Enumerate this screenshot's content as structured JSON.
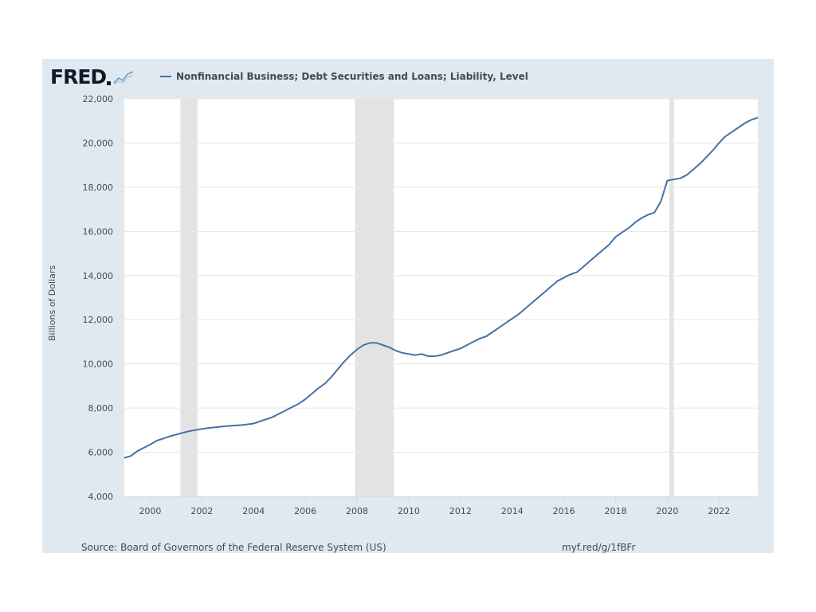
{
  "logo": {
    "text": "FRED",
    "icon": "fred-graph-icon"
  },
  "chart_data": {
    "type": "line",
    "title": "Nonfinancial Business; Debt Securities and Loans; Liability, Level",
    "ylabel": "Billions of Dollars",
    "xlabel": "",
    "ylim": [
      4000,
      22000
    ],
    "xlim": [
      1999.0,
      2023.5
    ],
    "y_ticks": [
      "4,000",
      "6,000",
      "8,000",
      "10,000",
      "12,000",
      "14,000",
      "16,000",
      "18,000",
      "20,000",
      "22,000"
    ],
    "x_ticks": [
      "2000",
      "2002",
      "2004",
      "2006",
      "2008",
      "2010",
      "2012",
      "2014",
      "2016",
      "2018",
      "2020",
      "2022"
    ],
    "grid": "horizontal",
    "recessions": [
      [
        2001.17,
        2001.83
      ],
      [
        2007.92,
        2009.42
      ],
      [
        2020.08,
        2020.25
      ]
    ],
    "series": [
      {
        "name": "Nonfinancial Business; Debt Securities and Loans; Liability, Level",
        "color": "#4572a7",
        "x": [
          1999.0,
          1999.25,
          1999.5,
          1999.75,
          2000.0,
          2000.25,
          2000.5,
          2000.75,
          2001.0,
          2001.25,
          2001.5,
          2001.75,
          2002.0,
          2002.25,
          2002.5,
          2002.75,
          2003.0,
          2003.25,
          2003.5,
          2003.75,
          2004.0,
          2004.25,
          2004.5,
          2004.75,
          2005.0,
          2005.25,
          2005.5,
          2005.75,
          2006.0,
          2006.25,
          2006.5,
          2006.75,
          2007.0,
          2007.25,
          2007.5,
          2007.75,
          2008.0,
          2008.25,
          2008.5,
          2008.75,
          2009.0,
          2009.25,
          2009.5,
          2009.75,
          2010.0,
          2010.25,
          2010.5,
          2010.75,
          2011.0,
          2011.25,
          2011.5,
          2011.75,
          2012.0,
          2012.25,
          2012.5,
          2012.75,
          2013.0,
          2013.25,
          2013.5,
          2013.75,
          2014.0,
          2014.25,
          2014.5,
          2014.75,
          2015.0,
          2015.25,
          2015.5,
          2015.75,
          2016.0,
          2016.25,
          2016.5,
          2016.75,
          2017.0,
          2017.25,
          2017.5,
          2017.75,
          2018.0,
          2018.25,
          2018.5,
          2018.75,
          2019.0,
          2019.25,
          2019.5,
          2019.75,
          2020.0,
          2020.25,
          2020.5,
          2020.75,
          2021.0,
          2021.25,
          2021.5,
          2021.75,
          2022.0,
          2022.25,
          2022.5,
          2022.75,
          2023.0,
          2023.25,
          2023.5
        ],
        "values": [
          5750,
          5830,
          6050,
          6200,
          6350,
          6520,
          6620,
          6720,
          6800,
          6880,
          6950,
          7010,
          7060,
          7100,
          7130,
          7160,
          7190,
          7210,
          7230,
          7260,
          7300,
          7400,
          7500,
          7600,
          7750,
          7900,
          8050,
          8200,
          8400,
          8650,
          8900,
          9100,
          9400,
          9750,
          10100,
          10400,
          10650,
          10850,
          10950,
          10950,
          10850,
          10750,
          10600,
          10500,
          10450,
          10400,
          10450,
          10350,
          10350,
          10400,
          10500,
          10600,
          10700,
          10850,
          11000,
          11150,
          11250,
          11450,
          11650,
          11850,
          12050,
          12250,
          12500,
          12750,
          13000,
          13250,
          13500,
          13750,
          13900,
          14050,
          14150,
          14400,
          14650,
          14900,
          15150,
          15400,
          15750,
          15950,
          16150,
          16400,
          16600,
          16750,
          16850,
          17350,
          18300,
          18350,
          18400,
          18550,
          18800,
          19050,
          19350,
          19650,
          20000,
          20300,
          20500,
          20700,
          20900,
          21050,
          21150
        ]
      }
    ]
  },
  "footer": {
    "source": "Source: Board of Governors of the Federal Reserve System (US)",
    "link": "myf.red/g/1fBFr"
  }
}
